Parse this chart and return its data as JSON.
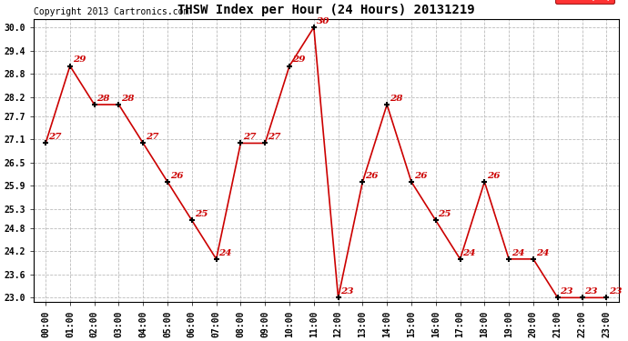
{
  "title": "THSW Index per Hour (24 Hours) 20131219",
  "copyright": "Copyright 2013 Cartronics.com",
  "legend_label": "THSW  (°F)",
  "hours": [
    0,
    1,
    2,
    3,
    4,
    5,
    6,
    7,
    8,
    9,
    10,
    11,
    12,
    13,
    14,
    15,
    16,
    17,
    18,
    19,
    20,
    21,
    22,
    23
  ],
  "x_labels": [
    "00:00",
    "01:00",
    "02:00",
    "03:00",
    "04:00",
    "05:00",
    "06:00",
    "07:00",
    "08:00",
    "09:00",
    "10:00",
    "11:00",
    "12:00",
    "13:00",
    "14:00",
    "15:00",
    "16:00",
    "17:00",
    "18:00",
    "19:00",
    "20:00",
    "21:00",
    "22:00",
    "23:00"
  ],
  "values": [
    27,
    29,
    28,
    28,
    27,
    26,
    25,
    24,
    27,
    27,
    29,
    30,
    23,
    26,
    28,
    26,
    25,
    24,
    26,
    24,
    24,
    23,
    23,
    23
  ],
  "y_ticks": [
    23.0,
    23.6,
    24.2,
    24.8,
    25.3,
    25.9,
    26.5,
    27.1,
    27.7,
    28.2,
    28.8,
    29.4,
    30.0
  ],
  "ylim": [
    22.88,
    30.22
  ],
  "xlim": [
    -0.5,
    23.5
  ],
  "line_color": "#cc0000",
  "marker_color": "#000000",
  "data_label_color": "#cc0000",
  "background_color": "#ffffff",
  "grid_color": "#bbbbbb",
  "title_fontsize": 10,
  "copyright_fontsize": 7,
  "tick_fontsize": 7,
  "data_label_fontsize": 7.5
}
